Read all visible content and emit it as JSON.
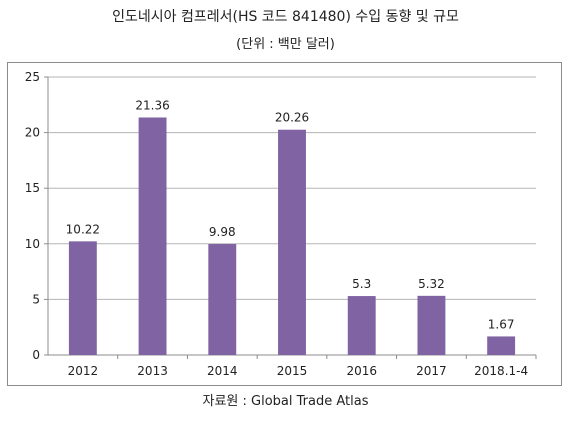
{
  "header": {
    "title": "인도네시아 컴프레서(HS 코드 841480) 수입 동향 및 규모",
    "subtitle": "(단위 : 백만 달러)"
  },
  "footer": {
    "source": "자료원 : Global Trade Atlas"
  },
  "chart_data": {
    "type": "bar",
    "categories": [
      "2012",
      "2013",
      "2014",
      "2015",
      "2016",
      "2017",
      "2018.1-4"
    ],
    "values": [
      10.22,
      21.36,
      9.98,
      20.26,
      5.3,
      5.32,
      1.67
    ],
    "value_labels": [
      "10.22",
      "21.36",
      "9.98",
      "20.26",
      "5.3",
      "5.32",
      "1.67"
    ],
    "yticks": [
      "0",
      "5",
      "10",
      "15",
      "20",
      "25"
    ],
    "ylim": [
      0,
      25
    ],
    "grid": true,
    "legend": "none",
    "bar_color": "#7f63a2",
    "grid_color": "#b5b5b5",
    "axis_color": "#8c8c8c"
  }
}
